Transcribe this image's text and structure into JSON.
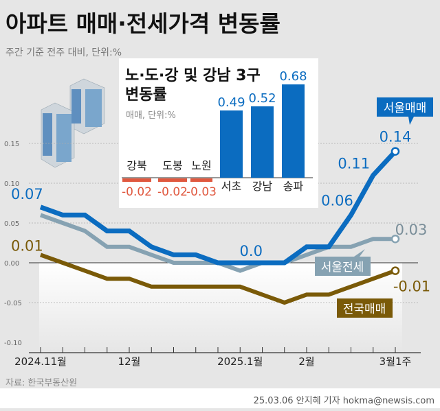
{
  "header": {
    "title": "아파트 매매·전세가격 변동률",
    "subtitle": "주간 기준 전주 대비, 단위:%"
  },
  "footer": {
    "source": "자료: 한국부동산원",
    "credit": "25.03.06 안지혜 기자 hokma@newsis.com"
  },
  "colors": {
    "seoul_sale": "#0b6cc0",
    "seoul_jeonse": "#86a2b2",
    "national_sale": "#7a5a08",
    "negative": "#e0583f",
    "background": "#e6e6e6"
  },
  "icons": {
    "decoration": "apartment-buildings-icon"
  },
  "chart_data": [
    {
      "type": "line",
      "title": "",
      "ylim": [
        -0.1,
        0.15
      ],
      "yticks": [
        "0.15",
        "0.10",
        "0.05",
        "0.00",
        "-0.05",
        "-0.10"
      ],
      "ytick_values": [
        0.15,
        0.1,
        0.05,
        0.0,
        -0.05,
        -0.1
      ],
      "x_tick_labels": [
        {
          "index": 0,
          "label": "2024.11월"
        },
        {
          "index": 4,
          "label": "12월"
        },
        {
          "index": 9,
          "label": "2025.1월"
        },
        {
          "index": 12,
          "label": "2월"
        },
        {
          "index": 16,
          "label": "3월1주"
        }
      ],
      "grid": "dashed horizontal",
      "series": [
        {
          "name": "서울매매",
          "key": "seoul_sale",
          "values": [
            0.07,
            0.06,
            0.06,
            0.04,
            0.04,
            0.02,
            0.01,
            0.01,
            0.0,
            0.0,
            0.0,
            0.0,
            0.02,
            0.02,
            0.06,
            0.11,
            0.14
          ],
          "labels": [
            {
              "index": 0,
              "text": "0.07"
            },
            {
              "index": 9,
              "text": "0.0"
            },
            {
              "index": 14,
              "text": "0.06"
            },
            {
              "index": 15,
              "text": "0.11"
            },
            {
              "index": 16,
              "text": "0.14"
            }
          ]
        },
        {
          "name": "서울전세",
          "key": "seoul_jeonse",
          "values": [
            0.06,
            0.05,
            0.04,
            0.02,
            0.02,
            0.01,
            0.0,
            0.0,
            0.0,
            -0.01,
            0.0,
            0.0,
            0.01,
            0.02,
            0.02,
            0.03,
            0.03
          ],
          "labels": [
            {
              "index": 16,
              "text": "0.03"
            }
          ]
        },
        {
          "name": "전국매매",
          "key": "national_sale",
          "values": [
            0.01,
            0.0,
            -0.01,
            -0.02,
            -0.02,
            -0.03,
            -0.03,
            -0.03,
            -0.03,
            -0.03,
            -0.04,
            -0.05,
            -0.04,
            -0.04,
            -0.03,
            -0.02,
            -0.01
          ],
          "labels": [
            {
              "index": 0,
              "text": "0.01"
            },
            {
              "index": 16,
              "text": "-0.01"
            }
          ]
        }
      ]
    },
    {
      "type": "bar",
      "title": "노·도·강 및 강남 3구",
      "title2": "변동률",
      "subtitle": "매매, 단위:%",
      "categories": [
        "강북",
        "도봉",
        "노원",
        "서초",
        "강남",
        "송파"
      ],
      "values": [
        -0.02,
        -0.02,
        -0.03,
        0.49,
        0.52,
        0.68
      ],
      "value_labels": [
        "-0.02",
        "-0.02",
        "-0.03",
        "0.49",
        "0.52",
        "0.68"
      ]
    }
  ]
}
